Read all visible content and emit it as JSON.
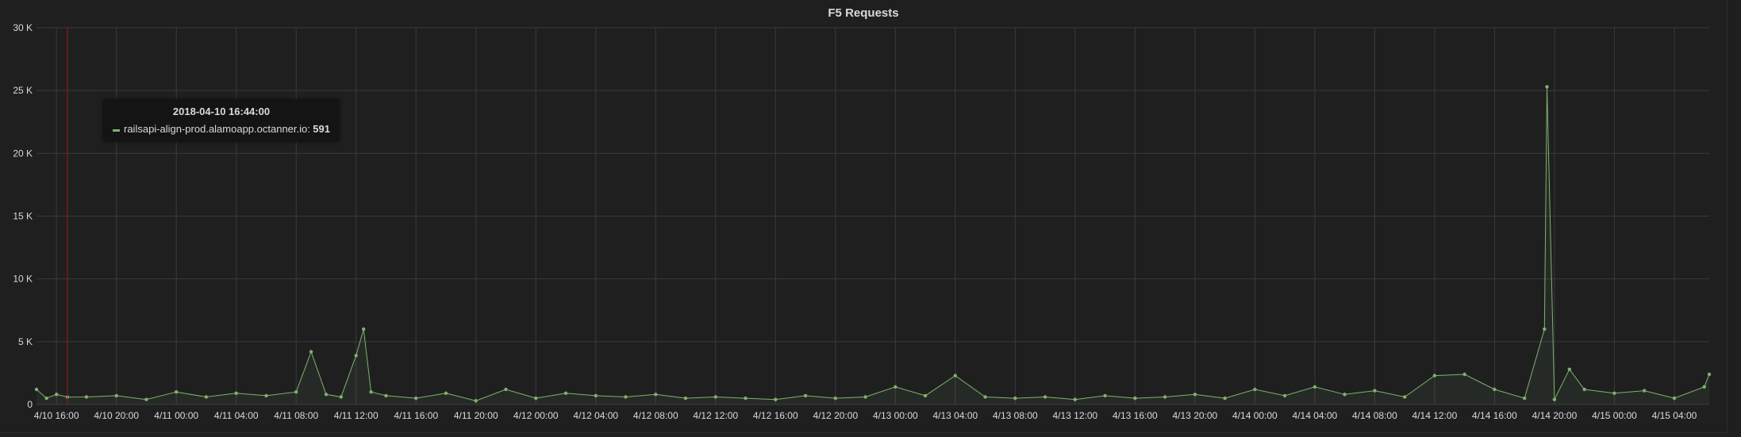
{
  "panel": {
    "title": "F5 Requests"
  },
  "tooltip": {
    "time": "2018-04-10 16:44:00",
    "series": "railsapi-align-prod.alamoapp.octanner.io:",
    "value": "591"
  },
  "colors": {
    "series": "#7eb26d",
    "grid": "#3a3a3c",
    "marker": "#a31515",
    "background": "#1f1f20",
    "text": "#d8d9da"
  },
  "chart_data": {
    "type": "line",
    "title": "F5 Requests",
    "xlabel": "",
    "ylabel": "",
    "x_range": [
      "2018-04-10 14:40",
      "2018-04-15 06:20"
    ],
    "ylim": [
      0,
      30000
    ],
    "y_ticks": [
      0,
      5000,
      10000,
      15000,
      20000,
      25000,
      30000
    ],
    "y_tick_labels": [
      "0",
      "5 K",
      "10 K",
      "15 K",
      "20 K",
      "25 K",
      "30 K"
    ],
    "x_ticks": [
      "2018-04-10 16:00",
      "2018-04-10 20:00",
      "2018-04-11 00:00",
      "2018-04-11 04:00",
      "2018-04-11 08:00",
      "2018-04-11 12:00",
      "2018-04-11 16:00",
      "2018-04-11 20:00",
      "2018-04-12 00:00",
      "2018-04-12 04:00",
      "2018-04-12 08:00",
      "2018-04-12 12:00",
      "2018-04-12 16:00",
      "2018-04-12 20:00",
      "2018-04-13 00:00",
      "2018-04-13 04:00",
      "2018-04-13 08:00",
      "2018-04-13 12:00",
      "2018-04-13 16:00",
      "2018-04-13 20:00",
      "2018-04-14 00:00",
      "2018-04-14 04:00",
      "2018-04-14 08:00",
      "2018-04-14 12:00",
      "2018-04-14 16:00",
      "2018-04-14 20:00",
      "2018-04-15 00:00",
      "2018-04-15 04:00"
    ],
    "x_tick_labels": [
      "4/10 16:00",
      "4/10 20:00",
      "4/11 00:00",
      "4/11 04:00",
      "4/11 08:00",
      "4/11 12:00",
      "4/11 16:00",
      "4/11 20:00",
      "4/12 00:00",
      "4/12 04:00",
      "4/12 08:00",
      "4/12 12:00",
      "4/12 16:00",
      "4/12 20:00",
      "4/13 00:00",
      "4/13 04:00",
      "4/13 08:00",
      "4/13 12:00",
      "4/13 16:00",
      "4/13 20:00",
      "4/14 00:00",
      "4/14 04:00",
      "4/14 08:00",
      "4/14 12:00",
      "4/14 16:00",
      "4/14 20:00",
      "4/15 00:00",
      "4/15 04:00"
    ],
    "grid": true,
    "legend": "none",
    "cursor_x": "2018-04-10 16:44",
    "series": [
      {
        "x": [
          "2018-04-10 14:40",
          "2018-04-10 15:20",
          "2018-04-10 16:00",
          "2018-04-10 16:44",
          "2018-04-10 18:00",
          "2018-04-10 20:00",
          "2018-04-10 22:00",
          "2018-04-11 00:00",
          "2018-04-11 02:00",
          "2018-04-11 04:00",
          "2018-04-11 06:00",
          "2018-04-11 08:00",
          "2018-04-11 09:00",
          "2018-04-11 10:00",
          "2018-04-11 11:00",
          "2018-04-11 12:00",
          "2018-04-11 12:30",
          "2018-04-11 13:00",
          "2018-04-11 14:00",
          "2018-04-11 16:00",
          "2018-04-11 18:00",
          "2018-04-11 20:00",
          "2018-04-11 22:00",
          "2018-04-12 00:00",
          "2018-04-12 02:00",
          "2018-04-12 04:00",
          "2018-04-12 06:00",
          "2018-04-12 08:00",
          "2018-04-12 10:00",
          "2018-04-12 12:00",
          "2018-04-12 14:00",
          "2018-04-12 16:00",
          "2018-04-12 18:00",
          "2018-04-12 20:00",
          "2018-04-12 22:00",
          "2018-04-13 00:00",
          "2018-04-13 02:00",
          "2018-04-13 04:00",
          "2018-04-13 06:00",
          "2018-04-13 08:00",
          "2018-04-13 10:00",
          "2018-04-13 12:00",
          "2018-04-13 14:00",
          "2018-04-13 16:00",
          "2018-04-13 18:00",
          "2018-04-13 20:00",
          "2018-04-13 22:00",
          "2018-04-14 00:00",
          "2018-04-14 02:00",
          "2018-04-14 04:00",
          "2018-04-14 06:00",
          "2018-04-14 08:00",
          "2018-04-14 10:00",
          "2018-04-14 12:00",
          "2018-04-14 14:00",
          "2018-04-14 16:00",
          "2018-04-14 18:00",
          "2018-04-14 19:20",
          "2018-04-14 19:30",
          "2018-04-14 20:00",
          "2018-04-14 21:00",
          "2018-04-14 22:00",
          "2018-04-15 00:00",
          "2018-04-15 02:00",
          "2018-04-15 04:00",
          "2018-04-15 06:00",
          "2018-04-15 06:20"
        ],
        "values": [
          1200,
          500,
          800,
          591,
          600,
          700,
          400,
          1000,
          600,
          900,
          700,
          1000,
          4200,
          800,
          600,
          3900,
          6000,
          1000,
          700,
          500,
          900,
          300,
          1200,
          500,
          900,
          700,
          600,
          800,
          500,
          600,
          500,
          400,
          700,
          500,
          600,
          1400,
          700,
          2300,
          600,
          500,
          600,
          400,
          700,
          500,
          600,
          800,
          500,
          1200,
          700,
          1400,
          800,
          1100,
          600,
          2300,
          2400,
          1200,
          500,
          6000,
          25300,
          400,
          2800,
          1200,
          900,
          1100,
          500,
          1400,
          2400
        ]
      }
    ]
  }
}
